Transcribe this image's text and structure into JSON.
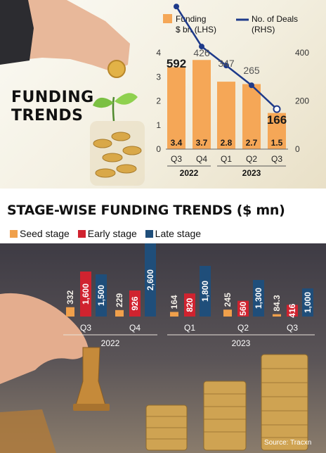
{
  "top_title_line1": "FUNDING",
  "top_title_line2": "TRENDS",
  "bottom_title": "STAGE-WISE FUNDING TRENDS ($ mn)",
  "source": "Source: Tracxn",
  "chart_data": [
    {
      "type": "bar",
      "title": "FUNDING TRENDS",
      "categories": [
        "Q3",
        "Q4",
        "Q1",
        "Q2",
        "Q3"
      ],
      "year_groups": [
        {
          "label": "2022",
          "span": [
            0,
            1
          ]
        },
        {
          "label": "2023",
          "span": [
            2,
            4
          ]
        }
      ],
      "series": [
        {
          "name": "Funding $ bn (LHS)",
          "type": "bar",
          "axis": "left",
          "color": "#f5a757",
          "values": [
            3.4,
            3.7,
            2.8,
            2.7,
            1.5
          ]
        },
        {
          "name": "No. of Deals (RHS)",
          "type": "line",
          "axis": "right",
          "color": "#1e3a8a",
          "values": [
            592,
            426,
            347,
            265,
            166
          ]
        }
      ],
      "left_axis": {
        "ylim": [
          0,
          4
        ],
        "ticks": [
          "0",
          "1",
          "2",
          "3",
          "4"
        ]
      },
      "right_axis": {
        "ylim": [
          0,
          400
        ],
        "ticks": [
          "0",
          "200",
          "400"
        ]
      },
      "bar_labels": [
        "3.4",
        "3.7",
        "2.8",
        "2.7",
        "1.5"
      ],
      "deal_labels": [
        "592",
        "426",
        "347",
        "265",
        "166"
      ],
      "legend_position": "top"
    },
    {
      "type": "bar",
      "title": "STAGE-WISE FUNDING TRENDS ($ mn)",
      "categories": [
        "Q3",
        "Q4",
        "Q1",
        "Q2",
        "Q3"
      ],
      "year_groups": [
        {
          "label": "2022",
          "span": [
            0,
            1
          ]
        },
        {
          "label": "2023",
          "span": [
            2,
            4
          ]
        }
      ],
      "series": [
        {
          "name": "Seed stage",
          "color": "#f0a04b",
          "values": [
            332,
            229,
            164,
            245,
            84.3
          ]
        },
        {
          "name": "Early stage",
          "color": "#d0232f",
          "values": [
            1600,
            926,
            820,
            560,
            416
          ]
        },
        {
          "name": "Late stage",
          "color": "#1f4e7a",
          "values": [
            1500,
            2600,
            1800,
            1300,
            1000
          ]
        }
      ],
      "value_labels": {
        "Seed stage": [
          "332",
          "229",
          "164",
          "245",
          "84.3"
        ],
        "Early stage": [
          "1,600",
          "926",
          "820",
          "560",
          "416"
        ],
        "Late stage": [
          "1,500",
          "2,600",
          "1,800",
          "1,300",
          "1,000"
        ]
      },
      "legend_position": "top-left"
    }
  ]
}
